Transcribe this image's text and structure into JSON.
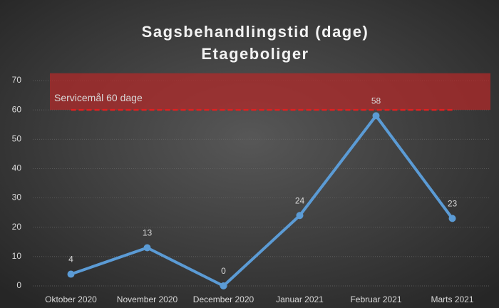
{
  "chart_data": {
    "type": "line",
    "title": "Sagsbehandlingstid (dage)",
    "subtitle": "Etageboliger",
    "categories": [
      "Oktober 2020",
      "November 2020",
      "December 2020",
      "Januar 2021",
      "Februar 2021",
      "Marts 2021"
    ],
    "series": [
      {
        "name": "Sagsbehandlingstid",
        "color": "#5b9bd5",
        "values": [
          4,
          13,
          0,
          24,
          58,
          23
        ]
      }
    ],
    "ylim": [
      0,
      70
    ],
    "yticks": [
      0,
      10,
      20,
      30,
      40,
      50,
      60,
      70
    ],
    "grid": true,
    "target": {
      "value": 60,
      "label": "Servicemål 60 dage",
      "color": "#e02020"
    },
    "band": {
      "range": [
        60,
        72.5
      ],
      "color": "#b02a2a"
    }
  }
}
